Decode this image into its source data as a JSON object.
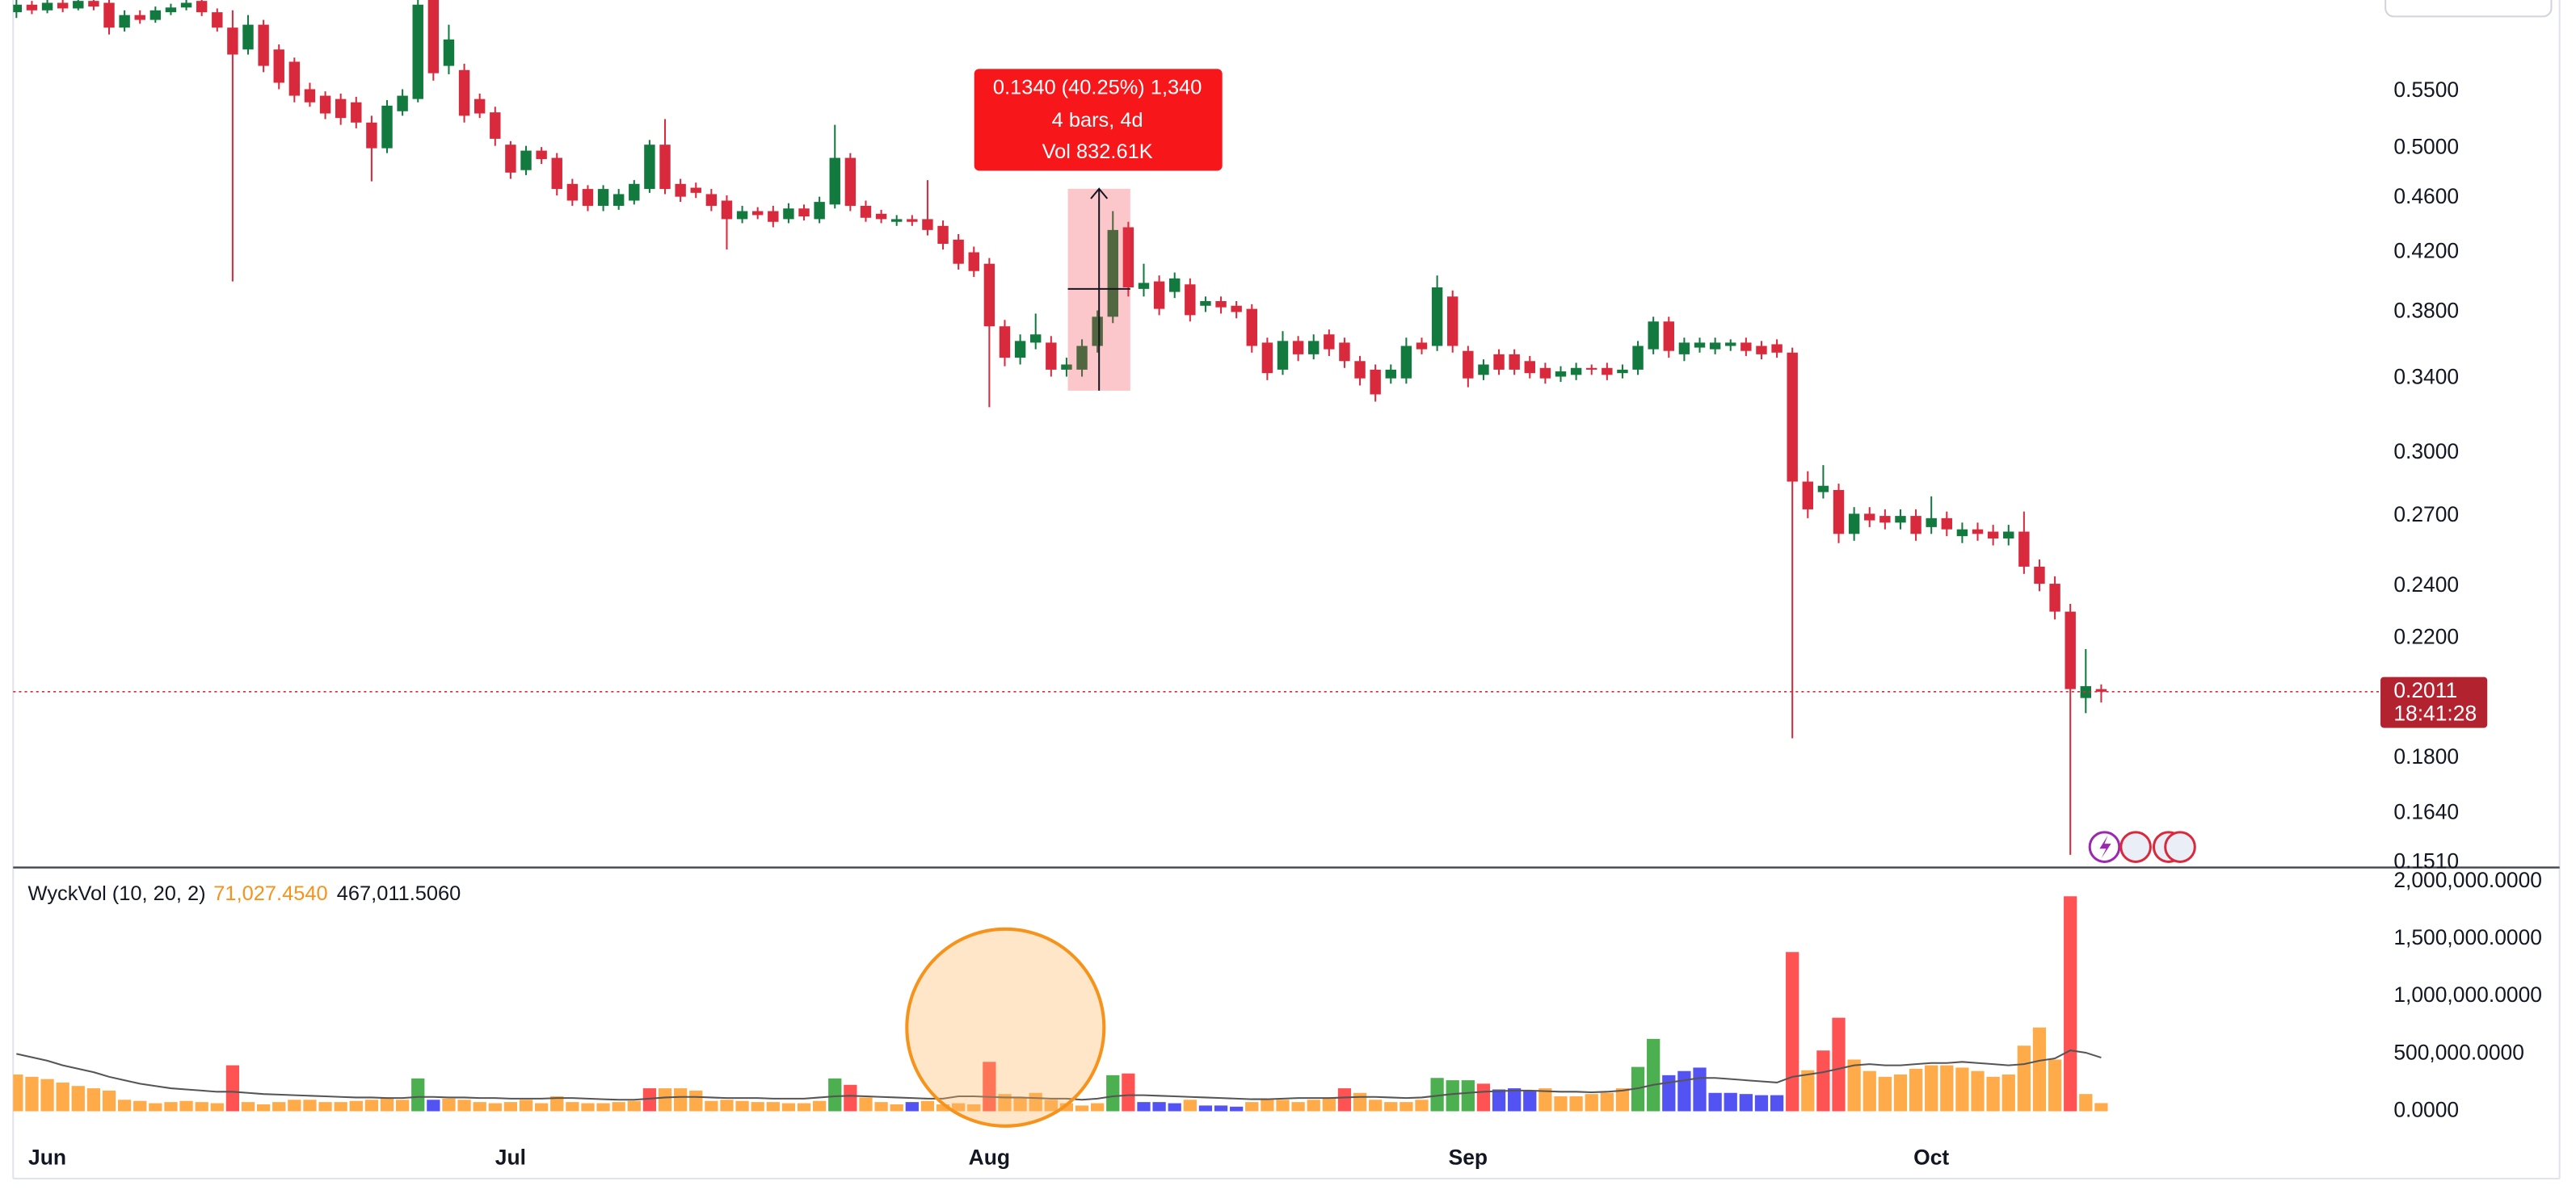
{
  "chart_data": [
    {
      "type": "candlestick",
      "log_scale": true,
      "ylim": [
        0.15,
        0.641
      ],
      "yticks": [
        {
          "value": 0.55,
          "label": "0.5500"
        },
        {
          "value": 0.5,
          "label": "0.5000"
        },
        {
          "value": 0.46,
          "label": "0.4600"
        },
        {
          "value": 0.42,
          "label": "0.4200"
        },
        {
          "value": 0.38,
          "label": "0.3800"
        },
        {
          "value": 0.34,
          "label": "0.3400"
        },
        {
          "value": 0.3,
          "label": "0.3000"
        },
        {
          "value": 0.27,
          "label": "0.2700"
        },
        {
          "value": 0.24,
          "label": "0.2400"
        },
        {
          "value": 0.22,
          "label": "0.2200"
        },
        {
          "value": 0.18,
          "label": "0.1800"
        },
        {
          "value": 0.164,
          "label": "0.1640"
        },
        {
          "value": 0.151,
          "label": "0.1510"
        }
      ],
      "grid": false,
      "up_color": "#137a3f",
      "down_color": "#d92a3d",
      "categories": [
        null,
        null,
        "Jun",
        null,
        null,
        null,
        null,
        null,
        null,
        null,
        null,
        null,
        null,
        null,
        null,
        null,
        null,
        null,
        null,
        null,
        null,
        null,
        null,
        null,
        null,
        null,
        null,
        null,
        null,
        null,
        null,
        null,
        "Jul",
        null,
        null,
        null,
        null,
        null,
        null,
        null,
        null,
        null,
        null,
        null,
        null,
        null,
        null,
        null,
        null,
        null,
        null,
        null,
        null,
        null,
        null,
        null,
        null,
        null,
        null,
        null,
        null,
        null,
        null,
        "Aug",
        null,
        null,
        null,
        null,
        null,
        null,
        null,
        null,
        null,
        null,
        null,
        null,
        null,
        null,
        null,
        null,
        null,
        null,
        null,
        null,
        null,
        null,
        null,
        null,
        null,
        null,
        null,
        null,
        null,
        null,
        "Sep",
        null,
        null,
        null,
        null,
        null,
        null,
        null,
        null,
        null,
        null,
        null,
        null,
        null,
        null,
        null,
        null,
        null,
        null,
        null,
        null,
        null,
        null,
        null,
        null,
        null,
        null,
        null,
        null,
        null,
        "Oct",
        null,
        null,
        null,
        null,
        null,
        null,
        null,
        null,
        null,
        null,
        null
      ],
      "open": [
        0.628,
        0.636,
        0.63,
        0.638,
        0.632,
        0.64,
        0.638,
        0.612,
        0.625,
        0.62,
        0.628,
        0.633,
        0.64,
        0.628,
        0.612,
        0.59,
        0.615,
        0.59,
        0.578,
        0.552,
        0.546,
        0.543,
        0.54,
        0.522,
        0.5,
        0.532,
        0.543,
        0.641,
        0.574,
        0.57,
        0.543,
        0.531,
        0.503,
        0.482,
        0.498,
        0.492,
        0.471,
        0.467,
        0.454,
        0.454,
        0.458,
        0.467,
        0.503,
        0.471,
        0.468,
        0.463,
        0.458,
        0.444,
        0.45,
        0.45,
        0.444,
        0.452,
        0.444,
        0.455,
        0.492,
        0.454,
        0.448,
        0.442,
        0.444,
        0.444,
        0.439,
        0.429,
        0.42,
        0.412,
        0.371,
        0.352,
        0.361,
        0.361,
        0.345,
        0.345,
        0.359,
        0.377,
        0.438,
        0.395,
        0.4,
        0.393,
        0.398,
        0.384,
        0.387,
        0.384,
        0.382,
        0.361,
        0.345,
        0.362,
        0.354,
        0.366,
        0.361,
        0.35,
        0.345,
        0.34,
        0.34,
        0.361,
        0.359,
        0.39,
        0.356,
        0.342,
        0.354,
        0.354,
        0.35,
        0.346,
        0.341,
        0.342,
        0.346,
        0.346,
        0.343,
        0.345,
        0.357,
        0.374,
        0.354,
        0.358,
        0.357,
        0.359,
        0.361,
        0.359,
        0.36,
        0.355,
        0.286,
        0.281,
        0.282,
        0.262,
        0.271,
        0.27,
        0.267,
        0.27,
        0.265,
        0.269,
        0.261,
        0.264,
        0.263,
        0.26,
        0.263,
        0.248,
        0.241,
        0.23,
        0.199,
        0.202
      ],
      "high": [
        0.641,
        0.64,
        0.641,
        0.641,
        0.641,
        0.641,
        0.641,
        0.63,
        0.63,
        0.634,
        0.637,
        0.641,
        0.641,
        0.632,
        0.63,
        0.625,
        0.62,
        0.595,
        0.582,
        0.558,
        0.55,
        0.548,
        0.545,
        0.528,
        0.542,
        0.552,
        0.641,
        0.641,
        0.615,
        0.576,
        0.548,
        0.536,
        0.506,
        0.502,
        0.501,
        0.496,
        0.475,
        0.47,
        0.47,
        0.467,
        0.474,
        0.507,
        0.525,
        0.475,
        0.472,
        0.467,
        0.462,
        0.454,
        0.453,
        0.454,
        0.456,
        0.455,
        0.461,
        0.52,
        0.496,
        0.458,
        0.451,
        0.447,
        0.447,
        0.474,
        0.443,
        0.433,
        0.424,
        0.416,
        0.375,
        0.366,
        0.379,
        0.365,
        0.352,
        0.363,
        0.381,
        0.45,
        0.442,
        0.412,
        0.404,
        0.406,
        0.402,
        0.39,
        0.39,
        0.387,
        0.385,
        0.364,
        0.368,
        0.365,
        0.366,
        0.369,
        0.364,
        0.353,
        0.348,
        0.348,
        0.364,
        0.364,
        0.404,
        0.394,
        0.359,
        0.351,
        0.357,
        0.357,
        0.353,
        0.349,
        0.347,
        0.349,
        0.348,
        0.349,
        0.348,
        0.362,
        0.377,
        0.377,
        0.364,
        0.364,
        0.364,
        0.363,
        0.364,
        0.362,
        0.363,
        0.358,
        0.291,
        0.294,
        0.285,
        0.274,
        0.274,
        0.273,
        0.273,
        0.273,
        0.279,
        0.272,
        0.267,
        0.267,
        0.266,
        0.266,
        0.272,
        0.251,
        0.244,
        0.233,
        0.216,
        0.2036
      ],
      "low": [
        0.622,
        0.626,
        0.627,
        0.628,
        0.63,
        0.63,
        0.605,
        0.608,
        0.616,
        0.617,
        0.625,
        0.63,
        0.624,
        0.608,
        0.4,
        0.585,
        0.568,
        0.552,
        0.54,
        0.536,
        0.525,
        0.52,
        0.517,
        0.473,
        0.496,
        0.528,
        0.54,
        0.56,
        0.566,
        0.522,
        0.526,
        0.502,
        0.475,
        0.478,
        0.487,
        0.462,
        0.454,
        0.45,
        0.45,
        0.451,
        0.455,
        0.464,
        0.463,
        0.457,
        0.46,
        0.45,
        0.422,
        0.441,
        0.444,
        0.438,
        0.441,
        0.443,
        0.441,
        0.452,
        0.45,
        0.442,
        0.441,
        0.439,
        0.439,
        0.432,
        0.422,
        0.408,
        0.403,
        0.324,
        0.347,
        0.348,
        0.357,
        0.341,
        0.341,
        0.341,
        0.355,
        0.373,
        0.39,
        0.39,
        0.378,
        0.389,
        0.374,
        0.38,
        0.379,
        0.376,
        0.355,
        0.339,
        0.342,
        0.35,
        0.351,
        0.353,
        0.346,
        0.336,
        0.327,
        0.337,
        0.337,
        0.354,
        0.356,
        0.355,
        0.335,
        0.339,
        0.342,
        0.342,
        0.34,
        0.337,
        0.338,
        0.339,
        0.342,
        0.339,
        0.34,
        0.342,
        0.354,
        0.352,
        0.35,
        0.355,
        0.354,
        0.356,
        0.353,
        0.351,
        0.352,
        0.186,
        0.269,
        0.278,
        0.258,
        0.259,
        0.265,
        0.264,
        0.264,
        0.259,
        0.262,
        0.261,
        0.258,
        0.259,
        0.257,
        0.257,
        0.245,
        0.238,
        0.227,
        0.153,
        0.194,
        0.1975
      ],
      "close": [
        0.636,
        0.63,
        0.638,
        0.632,
        0.64,
        0.634,
        0.612,
        0.625,
        0.62,
        0.63,
        0.633,
        0.638,
        0.628,
        0.612,
        0.585,
        0.615,
        0.574,
        0.558,
        0.546,
        0.54,
        0.53,
        0.526,
        0.522,
        0.5,
        0.537,
        0.546,
        0.636,
        0.567,
        0.6,
        0.528,
        0.53,
        0.508,
        0.48,
        0.498,
        0.491,
        0.467,
        0.458,
        0.454,
        0.467,
        0.463,
        0.471,
        0.503,
        0.467,
        0.461,
        0.464,
        0.454,
        0.444,
        0.45,
        0.447,
        0.442,
        0.452,
        0.446,
        0.457,
        0.492,
        0.454,
        0.445,
        0.444,
        0.444,
        0.442,
        0.436,
        0.426,
        0.412,
        0.407,
        0.371,
        0.352,
        0.362,
        0.366,
        0.345,
        0.348,
        0.359,
        0.377,
        0.436,
        0.396,
        0.399,
        0.382,
        0.402,
        0.378,
        0.387,
        0.383,
        0.38,
        0.359,
        0.343,
        0.362,
        0.354,
        0.362,
        0.357,
        0.35,
        0.34,
        0.331,
        0.345,
        0.359,
        0.357,
        0.396,
        0.359,
        0.34,
        0.348,
        0.345,
        0.345,
        0.343,
        0.34,
        0.344,
        0.346,
        0.345,
        0.342,
        0.345,
        0.359,
        0.374,
        0.356,
        0.361,
        0.361,
        0.361,
        0.361,
        0.356,
        0.354,
        0.355,
        0.286,
        0.273,
        0.284,
        0.262,
        0.271,
        0.268,
        0.267,
        0.27,
        0.262,
        0.269,
        0.264,
        0.264,
        0.262,
        0.26,
        0.263,
        0.248,
        0.241,
        0.23,
        0.202,
        0.203,
        0.2011
      ],
      "last_label": "0.2011",
      "countdown": "18:41:28",
      "measure": [
        "0.1340 (40.25%) 1,340",
        "4 bars, 4d",
        "Vol 832.61K"
      ]
    },
    {
      "type": "bar",
      "title": "WyckVol (10, 20, 2)",
      "last_labels": [
        "71,027.4540",
        "467,011.5060"
      ],
      "ylim": [
        0,
        2100000
      ],
      "yticks": [
        {
          "value": 0,
          "label": "0.0000"
        },
        {
          "value": 500000,
          "label": "500,000.0000"
        },
        {
          "value": 1000000,
          "label": "1,000,000.0000"
        },
        {
          "value": 1500000,
          "label": "1,500,000.0000"
        },
        {
          "value": 2000000,
          "label": "2,000,000.0000"
        }
      ],
      "values": [
        320000,
        300000,
        280000,
        250000,
        220000,
        200000,
        180000,
        100000,
        90000,
        70000,
        80000,
        90000,
        80000,
        70000,
        400000,
        80000,
        60000,
        80000,
        100000,
        100000,
        80000,
        80000,
        90000,
        100000,
        120000,
        100000,
        286000,
        100000,
        110000,
        100000,
        80000,
        70000,
        80000,
        100000,
        70000,
        130000,
        80000,
        70000,
        70000,
        80000,
        90000,
        200000,
        200000,
        200000,
        180000,
        90000,
        100000,
        90000,
        80000,
        80000,
        70000,
        70000,
        90000,
        286000,
        230000,
        120000,
        80000,
        60000,
        80000,
        90000,
        60000,
        70000,
        60000,
        430000,
        150000,
        120000,
        160000,
        100000,
        70000,
        50000,
        70000,
        314000,
        329000,
        80000,
        80000,
        70000,
        100000,
        50000,
        50000,
        40000,
        80000,
        100000,
        100000,
        80000,
        100000,
        120000,
        200000,
        160000,
        100000,
        80000,
        80000,
        100000,
        290000,
        270000,
        270000,
        240000,
        190000,
        200000,
        180000,
        200000,
        130000,
        130000,
        150000,
        160000,
        200000,
        386000,
        630000,
        314000,
        350000,
        380000,
        160000,
        160000,
        150000,
        140000,
        140000,
        1386000,
        357000,
        529000,
        814000,
        450000,
        350000,
        300000,
        320000,
        370000,
        400000,
        400000,
        380000,
        350000,
        300000,
        320000,
        571000,
        729000,
        450000,
        1871000,
        150000,
        71027.454
      ],
      "colors": [
        "#ffab4a",
        "#ffab4a",
        "#ffab4a",
        "#ffab4a",
        "#ffab4a",
        "#ffab4a",
        "#ffab4a",
        "#ffab4a",
        "#ffab4a",
        "#ffab4a",
        "#ffab4a",
        "#ffab4a",
        "#ffab4a",
        "#ffab4a",
        "#ff5252",
        "#ffab4a",
        "#ffab4a",
        "#ffab4a",
        "#ffab4a",
        "#ffab4a",
        "#ffab4a",
        "#ffab4a",
        "#ffab4a",
        "#ffab4a",
        "#ffab4a",
        "#ffab4a",
        "#4caf50",
        "#5353f4",
        "#ffab4a",
        "#ffab4a",
        "#ffab4a",
        "#ffab4a",
        "#ffab4a",
        "#ffab4a",
        "#ffab4a",
        "#ffab4a",
        "#ffab4a",
        "#ffab4a",
        "#ffab4a",
        "#ffab4a",
        "#ffab4a",
        "#ff5252",
        "#ffab4a",
        "#ffab4a",
        "#ffab4a",
        "#ffab4a",
        "#ffab4a",
        "#ffab4a",
        "#ffab4a",
        "#ffab4a",
        "#ffab4a",
        "#ffab4a",
        "#ffab4a",
        "#4caf50",
        "#ff5252",
        "#ffab4a",
        "#ffab4a",
        "#ffab4a",
        "#5353f4",
        "#ffab4a",
        "#ffab4a",
        "#ffab4a",
        "#ffab4a",
        "#ff5252",
        "#ffab4a",
        "#ffab4a",
        "#ffab4a",
        "#ffab4a",
        "#ffab4a",
        "#ffab4a",
        "#ffab4a",
        "#4caf50",
        "#ff5252",
        "#5353f4",
        "#5353f4",
        "#5353f4",
        "#ffab4a",
        "#5353f4",
        "#5353f4",
        "#5353f4",
        "#ffab4a",
        "#ffab4a",
        "#ffab4a",
        "#ffab4a",
        "#ffab4a",
        "#ffab4a",
        "#ff5252",
        "#ffab4a",
        "#ffab4a",
        "#ffab4a",
        "#ffab4a",
        "#ffab4a",
        "#4caf50",
        "#4caf50",
        "#4caf50",
        "#ff5252",
        "#5353f4",
        "#5353f4",
        "#5353f4",
        "#ffab4a",
        "#ffab4a",
        "#ffab4a",
        "#ffab4a",
        "#ffab4a",
        "#ffab4a",
        "#4caf50",
        "#4caf50",
        "#5353f4",
        "#5353f4",
        "#5353f4",
        "#5353f4",
        "#5353f4",
        "#5353f4",
        "#5353f4",
        "#5353f4",
        "#ff5252",
        "#ffab4a",
        "#ff5252",
        "#ff5252",
        "#ffab4a",
        "#ffab4a",
        "#ffab4a",
        "#ffab4a",
        "#ffab4a",
        "#ffab4a",
        "#ffab4a",
        "#ffab4a",
        "#ffab4a",
        "#ffab4a",
        "#ffab4a",
        "#ffab4a",
        "#ffab4a",
        "#ffab4a",
        "#ff5252",
        "#ffab4a",
        "#ffab4a"
      ],
      "ma": {
        "color": "#555555",
        "values": [
          500000,
          470000,
          440000,
          400000,
          370000,
          340000,
          300000,
          270000,
          240000,
          220000,
          200000,
          190000,
          180000,
          170000,
          170000,
          160000,
          150000,
          145000,
          140000,
          135000,
          130000,
          125000,
          120000,
          120000,
          115000,
          115000,
          125000,
          125000,
          120000,
          120000,
          115000,
          115000,
          110000,
          110000,
          110000,
          115000,
          115000,
          110000,
          105000,
          100000,
          100000,
          110000,
          120000,
          125000,
          125000,
          120000,
          115000,
          115000,
          115000,
          110000,
          110000,
          110000,
          120000,
          130000,
          135000,
          130000,
          125000,
          120000,
          115000,
          110000,
          110000,
          130000,
          130000,
          125000,
          120000,
          120000,
          115000,
          110000,
          110000,
          100000,
          110000,
          130000,
          140000,
          140000,
          135000,
          130000,
          125000,
          120000,
          115000,
          110000,
          105000,
          105000,
          110000,
          115000,
          115000,
          115000,
          120000,
          125000,
          125000,
          120000,
          115000,
          120000,
          135000,
          150000,
          160000,
          170000,
          175000,
          180000,
          180000,
          175000,
          170000,
          170000,
          165000,
          170000,
          180000,
          200000,
          230000,
          250000,
          270000,
          290000,
          290000,
          280000,
          270000,
          260000,
          250000,
          300000,
          320000,
          340000,
          370000,
          400000,
          410000,
          400000,
          400000,
          410000,
          420000,
          420000,
          430000,
          420000,
          410000,
          400000,
          410000,
          440000,
          460000,
          530000,
          510000,
          467011.506
        ]
      }
    }
  ]
}
